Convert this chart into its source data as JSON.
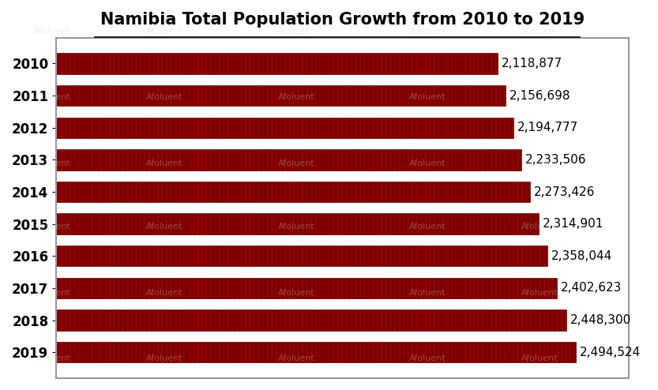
{
  "title": "Namibia Total Population Growth from 2010 to 2019",
  "years": [
    "2010",
    "2011",
    "2012",
    "2013",
    "2014",
    "2015",
    "2016",
    "2017",
    "2018",
    "2019"
  ],
  "values": [
    2118877,
    2156698,
    2194777,
    2233506,
    2273426,
    2314901,
    2358044,
    2402623,
    2448300,
    2494524
  ],
  "labels": [
    "2,118,877",
    "2,156,698",
    "2,194,777",
    "2,233,506",
    "2,273,426",
    "2,314,901",
    "2,358,044",
    "2,402,623",
    "2,448,300",
    "2,494,524"
  ],
  "bar_color": "#8B0000",
  "bar_edge_color": "#6B0000",
  "background_color": "#FFFFFF",
  "title_fontsize": 15,
  "label_fontsize": 11,
  "tick_fontsize": 12,
  "xlim": [
    0,
    2750000
  ],
  "bar_height": 0.65
}
